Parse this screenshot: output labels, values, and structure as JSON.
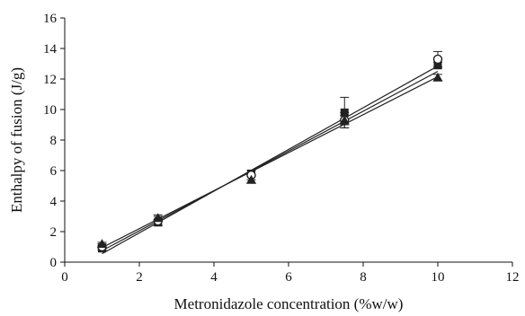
{
  "chart_data": {
    "type": "scatter",
    "title": "",
    "xlabel": "Metronidazole concentration (%w/w)",
    "ylabel": "Enthalpy of fusion (J/g)",
    "xlim": [
      0,
      12
    ],
    "ylim": [
      0,
      16
    ],
    "xticks": [
      0,
      2,
      4,
      6,
      8,
      10,
      12
    ],
    "yticks": [
      0,
      2,
      4,
      6,
      8,
      10,
      12,
      14,
      16
    ],
    "grid": false,
    "legend": "none",
    "series": [
      {
        "marker": "square",
        "color": "#222222",
        "x": [
          1,
          2.5,
          5,
          7.5,
          10
        ],
        "y": [
          0.9,
          2.6,
          5.8,
          9.8,
          12.9
        ],
        "err": [
          0.1,
          0.2,
          0.2,
          1.0,
          0.2
        ],
        "fit": [
          [
            1,
            0.55
          ],
          [
            10,
            12.85
          ]
        ]
      },
      {
        "marker": "circle",
        "color": "#222222",
        "x": [
          1,
          2.5,
          5,
          7.5,
          10
        ],
        "y": [
          1.0,
          2.7,
          5.7,
          9.3,
          13.3
        ],
        "err": [
          0.2,
          0.3,
          0.3,
          0.5,
          0.5
        ],
        "fit": [
          [
            1,
            0.75
          ],
          [
            10,
            12.5
          ]
        ]
      },
      {
        "marker": "triangle",
        "color": "#222222",
        "x": [
          1,
          2.5,
          5,
          7.5,
          10
        ],
        "y": [
          1.2,
          2.9,
          5.4,
          9.3,
          12.1
        ],
        "err": [
          0.1,
          0.2,
          0.2,
          0.3,
          0.2
        ],
        "fit": [
          [
            1,
            0.95
          ],
          [
            10,
            12.15
          ]
        ]
      }
    ]
  }
}
